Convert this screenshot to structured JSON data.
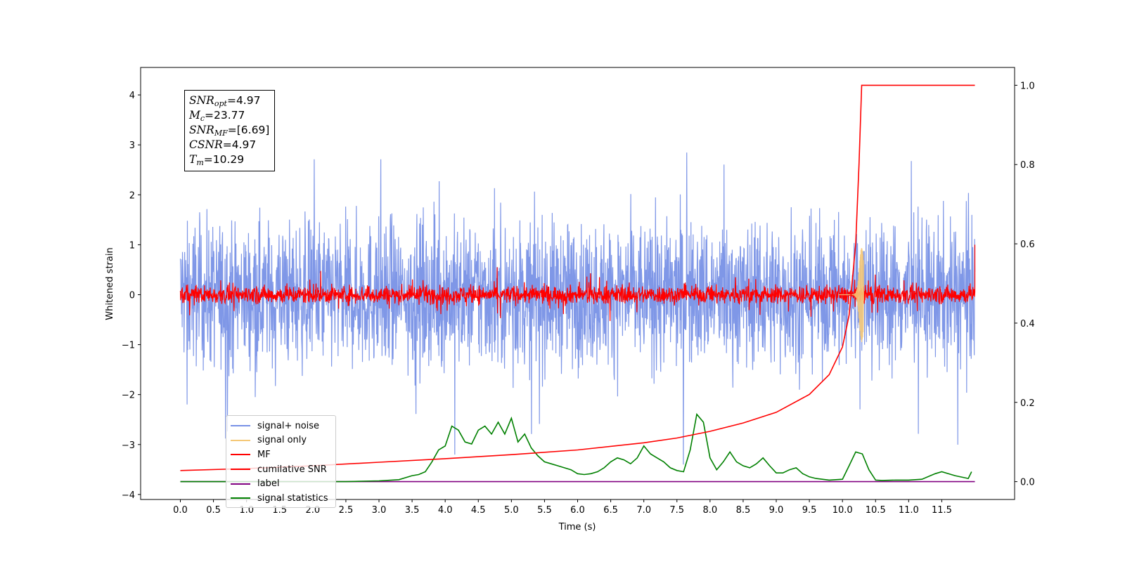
{
  "chart_data": {
    "type": "line",
    "xlabel": "Time (s)",
    "ylabel": "Whitened strain",
    "xlim": [
      -0.6,
      12.6
    ],
    "ylim": [
      -4.1,
      4.55
    ],
    "y2lim": [
      -0.045,
      1.045
    ],
    "x_ticks": [
      "0.0",
      "0.5",
      "1.0",
      "1.5",
      "2.0",
      "2.5",
      "3.0",
      "3.5",
      "4.0",
      "4.5",
      "5.0",
      "5.5",
      "6.0",
      "6.5",
      "7.0",
      "7.5",
      "8.0",
      "8.5",
      "9.0",
      "9.5",
      "10.0",
      "10.5",
      "11.0",
      "11.5"
    ],
    "y_ticks": [
      "4",
      "3",
      "2",
      "1",
      "0",
      "−1",
      "−2",
      "−3",
      "−4"
    ],
    "y2_ticks": [
      "1.0",
      "0.8",
      "0.6",
      "0.4",
      "0.2",
      "0.0"
    ],
    "annotation": {
      "snr_opt": "=4.97",
      "mc": "=23.77",
      "snr_mf": "=[6.69]",
      "csnr": "=4.97",
      "tm": "=10.29"
    },
    "series": [
      {
        "name": "signal+ noise",
        "axis": "left",
        "color": "#7891e6",
        "description": "whitened noise, amplitude roughly ±2 with spikes to ±3.5",
        "x_range": [
          0,
          12.0
        ]
      },
      {
        "name": "signal only",
        "axis": "left",
        "color": "#f5c877",
        "description": "chirp burst near merger",
        "peak_time": 10.29,
        "peak_amplitude": 0.95
      },
      {
        "name": "MF",
        "axis": "left",
        "color": "#ff0000",
        "description": "matched filter output, amplitude ~±0.3"
      },
      {
        "name": "cumilative SNR",
        "axis": "right",
        "color": "#ff0000",
        "x": [
          0,
          1,
          2,
          3,
          4,
          5,
          6,
          7,
          7.5,
          8,
          8.5,
          9,
          9.5,
          9.8,
          10.0,
          10.1,
          10.2,
          10.25,
          10.29,
          12.0
        ],
        "y": [
          0.028,
          0.033,
          0.04,
          0.049,
          0.058,
          0.068,
          0.08,
          0.098,
          0.11,
          0.127,
          0.148,
          0.175,
          0.22,
          0.27,
          0.34,
          0.42,
          0.6,
          0.8,
          1.0,
          1.0
        ]
      },
      {
        "name": "label",
        "axis": "right",
        "color": "#800080",
        "x": [
          0,
          12.0
        ],
        "y": [
          0.0,
          0.0
        ]
      },
      {
        "name": "signal statistics",
        "axis": "right",
        "color": "#008000",
        "x": [
          0,
          2.5,
          3.0,
          3.3,
          3.5,
          3.6,
          3.7,
          3.8,
          3.9,
          4.0,
          4.1,
          4.2,
          4.3,
          4.4,
          4.5,
          4.6,
          4.7,
          4.8,
          4.9,
          5.0,
          5.1,
          5.2,
          5.3,
          5.4,
          5.5,
          5.6,
          5.7,
          5.8,
          5.9,
          6.0,
          6.1,
          6.2,
          6.3,
          6.4,
          6.5,
          6.6,
          6.7,
          6.8,
          6.9,
          7.0,
          7.1,
          7.2,
          7.3,
          7.4,
          7.5,
          7.6,
          7.7,
          7.8,
          7.9,
          8.0,
          8.1,
          8.2,
          8.3,
          8.4,
          8.5,
          8.6,
          8.7,
          8.8,
          8.9,
          9.0,
          9.1,
          9.2,
          9.3,
          9.4,
          9.5,
          9.6,
          9.8,
          10.0,
          10.1,
          10.2,
          10.3,
          10.4,
          10.5,
          10.6,
          10.8,
          11.0,
          11.2,
          11.4,
          11.5,
          11.7,
          11.9,
          11.95
        ],
        "y": [
          0.0,
          0.0,
          0.002,
          0.005,
          0.015,
          0.018,
          0.025,
          0.05,
          0.08,
          0.09,
          0.14,
          0.13,
          0.1,
          0.095,
          0.13,
          0.14,
          0.12,
          0.15,
          0.12,
          0.16,
          0.1,
          0.12,
          0.085,
          0.065,
          0.05,
          0.045,
          0.04,
          0.035,
          0.03,
          0.02,
          0.018,
          0.02,
          0.025,
          0.035,
          0.05,
          0.06,
          0.055,
          0.045,
          0.06,
          0.09,
          0.07,
          0.06,
          0.05,
          0.035,
          0.028,
          0.025,
          0.08,
          0.17,
          0.15,
          0.06,
          0.03,
          0.05,
          0.075,
          0.05,
          0.04,
          0.035,
          0.045,
          0.06,
          0.04,
          0.022,
          0.022,
          0.03,
          0.035,
          0.02,
          0.012,
          0.008,
          0.004,
          0.006,
          0.04,
          0.075,
          0.07,
          0.03,
          0.004,
          0.003,
          0.004,
          0.004,
          0.006,
          0.02,
          0.025,
          0.015,
          0.008,
          0.025
        ]
      }
    ]
  }
}
